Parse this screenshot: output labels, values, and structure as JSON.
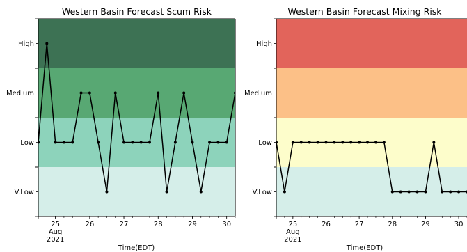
{
  "chart_data": [
    {
      "type": "line",
      "title": "Western Basin Forecast Scum Risk",
      "xlabel": "Time(EDT)",
      "ylabel": "",
      "x_tick_labels": [
        {
          "day": 24.5,
          "lines": [
            "",
            "",
            ""
          ]
        },
        {
          "day": 25,
          "lines": [
            "25",
            "Aug",
            "2021"
          ]
        },
        {
          "day": 26,
          "lines": [
            "26"
          ]
        },
        {
          "day": 27,
          "lines": [
            "27"
          ]
        },
        {
          "day": 28,
          "lines": [
            "28"
          ]
        },
        {
          "day": 29,
          "lines": [
            "29"
          ]
        },
        {
          "day": 30,
          "lines": [
            "30"
          ]
        }
      ],
      "xlim": [
        24.5,
        30.25
      ],
      "ylim": [
        0,
        4
      ],
      "y_levels": [
        {
          "label": "V.Low",
          "value": 0.5
        },
        {
          "label": "Low",
          "value": 1.5
        },
        {
          "label": "Medium",
          "value": 2.5
        },
        {
          "label": "High",
          "value": 3.5
        }
      ],
      "bands": [
        {
          "from": 0,
          "to": 1,
          "color": "#d5eee9"
        },
        {
          "from": 1,
          "to": 2,
          "color": "#8dd3bb"
        },
        {
          "from": 2,
          "to": 3,
          "color": "#58a873"
        },
        {
          "from": 3,
          "to": 4,
          "color": "#3d7254"
        }
      ],
      "series": [
        {
          "color": "#000000",
          "points": [
            {
              "x": 24.5,
              "level": "Low"
            },
            {
              "x": 24.75,
              "level": "High"
            },
            {
              "x": 25.0,
              "level": "Low"
            },
            {
              "x": 25.25,
              "level": "Low"
            },
            {
              "x": 25.5,
              "level": "Low"
            },
            {
              "x": 25.75,
              "level": "Medium"
            },
            {
              "x": 26.0,
              "level": "Medium"
            },
            {
              "x": 26.25,
              "level": "Low"
            },
            {
              "x": 26.5,
              "level": "V.Low"
            },
            {
              "x": 26.75,
              "level": "Medium"
            },
            {
              "x": 27.0,
              "level": "Low"
            },
            {
              "x": 27.25,
              "level": "Low"
            },
            {
              "x": 27.5,
              "level": "Low"
            },
            {
              "x": 27.75,
              "level": "Low"
            },
            {
              "x": 28.0,
              "level": "Medium"
            },
            {
              "x": 28.25,
              "level": "V.Low"
            },
            {
              "x": 28.5,
              "level": "Low"
            },
            {
              "x": 28.75,
              "level": "Medium"
            },
            {
              "x": 29.0,
              "level": "Low"
            },
            {
              "x": 29.25,
              "level": "V.Low"
            },
            {
              "x": 29.5,
              "level": "Low"
            },
            {
              "x": 29.75,
              "level": "Low"
            },
            {
              "x": 30.0,
              "level": "Low"
            },
            {
              "x": 30.25,
              "level": "Medium"
            }
          ]
        }
      ]
    },
    {
      "type": "line",
      "title": "Western Basin Forecast Mixing Risk",
      "xlabel": "Time(EDT)",
      "ylabel": "",
      "x_tick_labels": [
        {
          "day": 24.5,
          "lines": [
            "",
            "",
            ""
          ]
        },
        {
          "day": 25,
          "lines": [
            "25",
            "Aug",
            "2021"
          ]
        },
        {
          "day": 26,
          "lines": [
            "26"
          ]
        },
        {
          "day": 27,
          "lines": [
            "27"
          ]
        },
        {
          "day": 28,
          "lines": [
            "28"
          ]
        },
        {
          "day": 29,
          "lines": [
            "29"
          ]
        },
        {
          "day": 30,
          "lines": [
            "30"
          ]
        }
      ],
      "xlim": [
        24.5,
        30.25
      ],
      "ylim": [
        0,
        4
      ],
      "y_levels": [
        {
          "label": "V.Low",
          "value": 0.5
        },
        {
          "label": "Low",
          "value": 1.5
        },
        {
          "label": "Medium",
          "value": 2.5
        },
        {
          "label": "High",
          "value": 3.5
        }
      ],
      "bands": [
        {
          "from": 0,
          "to": 1,
          "color": "#d5eee9"
        },
        {
          "from": 1,
          "to": 2,
          "color": "#fdfdcb"
        },
        {
          "from": 2,
          "to": 3,
          "color": "#fcc087"
        },
        {
          "from": 3,
          "to": 4,
          "color": "#e2645b"
        }
      ],
      "series": [
        {
          "color": "#000000",
          "points": [
            {
              "x": 24.5,
              "level": "Low"
            },
            {
              "x": 24.75,
              "level": "V.Low"
            },
            {
              "x": 25.0,
              "level": "Low"
            },
            {
              "x": 25.25,
              "level": "Low"
            },
            {
              "x": 25.5,
              "level": "Low"
            },
            {
              "x": 25.75,
              "level": "Low"
            },
            {
              "x": 26.0,
              "level": "Low"
            },
            {
              "x": 26.25,
              "level": "Low"
            },
            {
              "x": 26.5,
              "level": "Low"
            },
            {
              "x": 26.75,
              "level": "Low"
            },
            {
              "x": 27.0,
              "level": "Low"
            },
            {
              "x": 27.25,
              "level": "Low"
            },
            {
              "x": 27.5,
              "level": "Low"
            },
            {
              "x": 27.75,
              "level": "Low"
            },
            {
              "x": 28.0,
              "level": "V.Low"
            },
            {
              "x": 28.25,
              "level": "V.Low"
            },
            {
              "x": 28.5,
              "level": "V.Low"
            },
            {
              "x": 28.75,
              "level": "V.Low"
            },
            {
              "x": 29.0,
              "level": "V.Low"
            },
            {
              "x": 29.25,
              "level": "Low"
            },
            {
              "x": 29.5,
              "level": "V.Low"
            },
            {
              "x": 29.75,
              "level": "V.Low"
            },
            {
              "x": 30.0,
              "level": "V.Low"
            },
            {
              "x": 30.25,
              "level": "V.Low"
            }
          ]
        }
      ]
    }
  ]
}
